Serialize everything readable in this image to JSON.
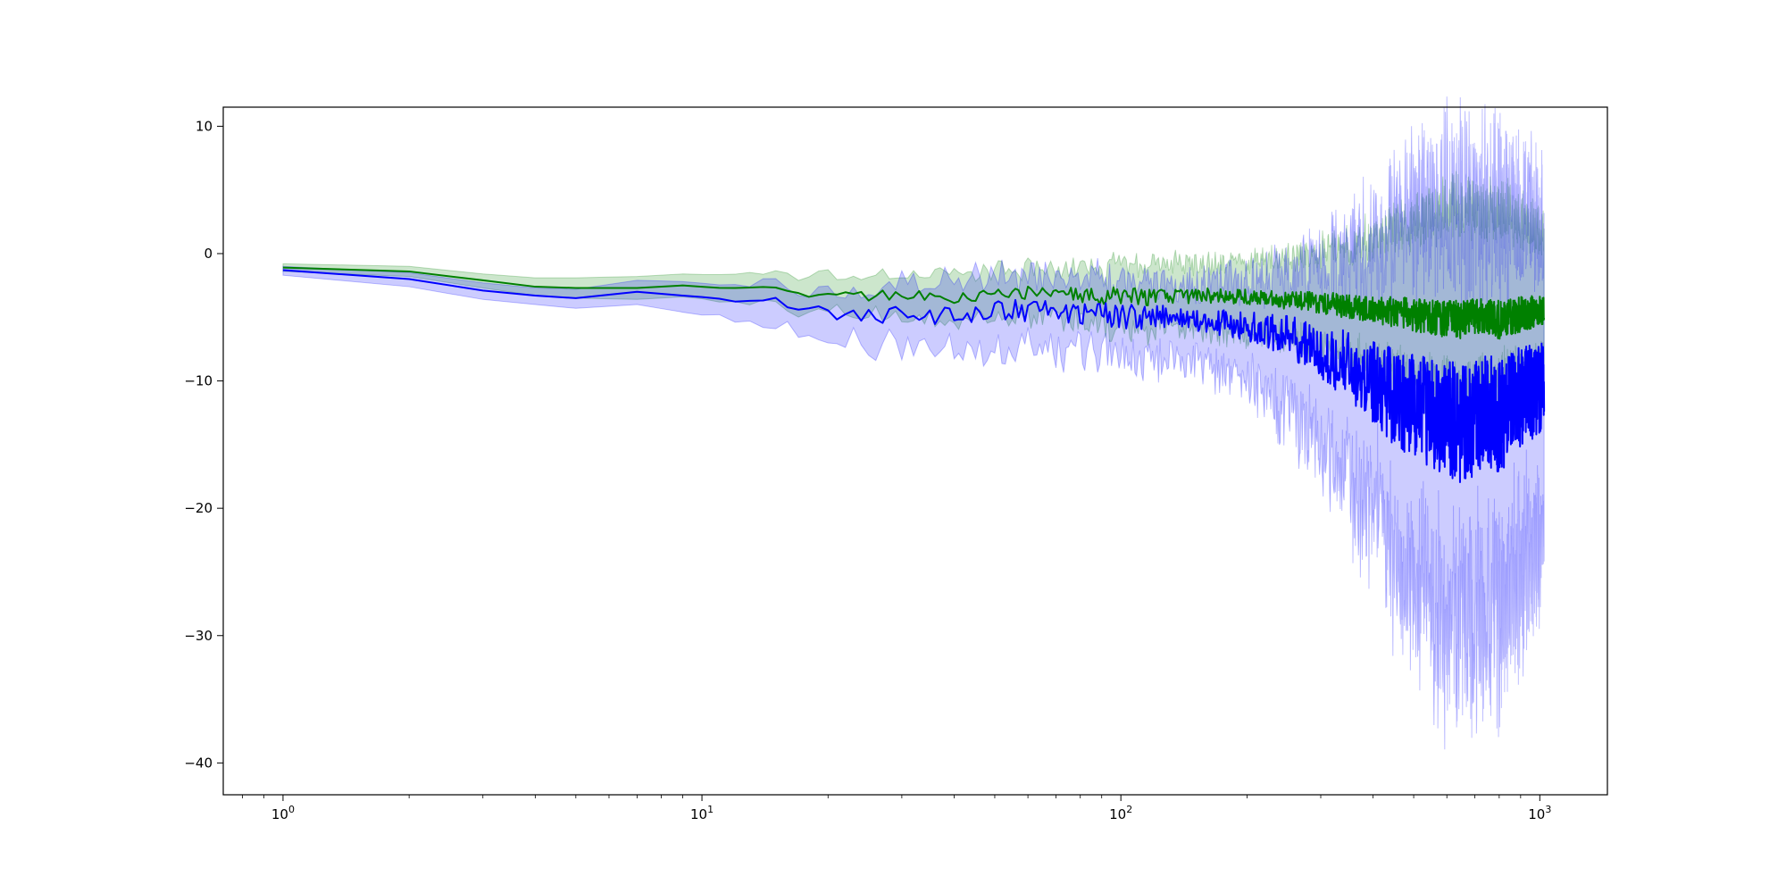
{
  "chart_data": {
    "type": "line",
    "title": "",
    "xlabel": "",
    "ylabel": "",
    "xscale": "log",
    "xlim": [
      0.72,
      1450
    ],
    "ylim": [
      -42.5,
      11.5
    ],
    "grid": false,
    "legend": "none",
    "x_ticks": [
      {
        "value": 1,
        "base": "10",
        "exp": "0"
      },
      {
        "value": 10,
        "base": "10",
        "exp": "1"
      },
      {
        "value": 100,
        "base": "10",
        "exp": "2"
      },
      {
        "value": 1000,
        "base": "10",
        "exp": "3"
      }
    ],
    "y_ticks": [
      {
        "value": 10,
        "label": "10"
      },
      {
        "value": 0,
        "label": "0"
      },
      {
        "value": -10,
        "label": "−10"
      },
      {
        "value": -20,
        "label": "−20"
      },
      {
        "value": -30,
        "label": "−30"
      },
      {
        "value": -40,
        "label": "−40"
      }
    ],
    "series": [
      {
        "color": "#008000",
        "band_color": "#008000",
        "x": [
          1,
          2,
          3,
          4,
          5,
          7,
          9,
          12,
          15,
          17,
          20,
          25,
          30,
          40,
          50,
          60,
          70,
          80,
          90,
          100,
          120,
          150,
          200,
          250,
          300,
          350,
          400,
          450,
          500,
          550,
          600,
          650,
          700,
          750,
          800,
          850,
          900,
          950,
          1000,
          1024
        ],
        "values": [
          -1.1,
          -1.4,
          -2.1,
          -2.6,
          -2.7,
          -2.7,
          -2.5,
          -2.7,
          -2.8,
          -3.3,
          -2.9,
          -3.3,
          -3.3,
          -3.4,
          -3.2,
          -3.1,
          -3.4,
          -3.3,
          -3.3,
          -3.3,
          -3.4,
          -3.3,
          -3.4,
          -3.7,
          -3.9,
          -4.1,
          -4.3,
          -4.6,
          -4.8,
          -5.0,
          -5.1,
          -5.2,
          -5.0,
          -4.9,
          -5.2,
          -5.0,
          -4.8,
          -4.6,
          -4.5,
          -4.3
        ],
        "lower": [
          -1.4,
          -1.8,
          -2.7,
          -3.3,
          -3.5,
          -3.6,
          -3.4,
          -3.8,
          -3.9,
          -4.5,
          -4.2,
          -4.6,
          -4.8,
          -5.0,
          -5.0,
          -5.0,
          -5.3,
          -5.3,
          -5.4,
          -5.5,
          -5.7,
          -5.8,
          -6.0,
          -6.6,
          -7.1,
          -7.7,
          -8.4,
          -9.0,
          -9.6,
          -10.0,
          -10.3,
          -10.4,
          -10.2,
          -10.0,
          -10.3,
          -9.8,
          -9.4,
          -9.0,
          -8.6,
          -8.2
        ],
        "upper": [
          -0.8,
          -1.0,
          -1.6,
          -1.9,
          -1.9,
          -1.8,
          -1.6,
          -1.6,
          -1.7,
          -2.0,
          -1.6,
          -1.9,
          -1.7,
          -1.8,
          -1.5,
          -1.3,
          -1.5,
          -1.4,
          -1.3,
          -1.2,
          -1.2,
          -1.0,
          -0.8,
          -0.6,
          -0.2,
          0.3,
          0.9,
          1.6,
          2.2,
          2.8,
          3.2,
          3.3,
          3.0,
          2.8,
          3.0,
          2.6,
          2.2,
          1.8,
          1.4,
          1.0
        ],
        "noise_amp": [
          0,
          0,
          0,
          0,
          0,
          0,
          0,
          0.1,
          0.2,
          0.3,
          0.3,
          0.4,
          0.4,
          0.5,
          0.5,
          0.6,
          0.6,
          0.7,
          0.7,
          0.7,
          0.7,
          0.6,
          0.6,
          0.7,
          0.9,
          1.0,
          1.1,
          1.2,
          1.3,
          1.4,
          1.5,
          1.5,
          1.5,
          1.5,
          1.5,
          1.5,
          1.4,
          1.3,
          1.2,
          1.2
        ]
      },
      {
        "color": "#0000ff",
        "band_color": "#0000ff",
        "x": [
          1,
          2,
          3,
          4,
          5,
          7,
          9,
          12,
          15,
          17,
          20,
          25,
          30,
          40,
          50,
          60,
          70,
          80,
          90,
          100,
          120,
          150,
          200,
          250,
          300,
          350,
          400,
          450,
          500,
          550,
          600,
          650,
          700,
          750,
          800,
          850,
          900,
          950,
          1000,
          1024
        ],
        "values": [
          -1.3,
          -2.0,
          -2.9,
          -3.3,
          -3.5,
          -3.0,
          -3.3,
          -3.7,
          -3.8,
          -4.3,
          -4.6,
          -4.8,
          -4.7,
          -4.9,
          -4.4,
          -4.6,
          -4.7,
          -4.6,
          -4.7,
          -4.9,
          -5.0,
          -5.1,
          -5.7,
          -6.5,
          -7.6,
          -8.8,
          -10.0,
          -11.3,
          -12.0,
          -12.6,
          -12.9,
          -13.2,
          -12.8,
          -12.2,
          -12.6,
          -12.0,
          -11.4,
          -11.0,
          -10.6,
          -10.2
        ],
        "lower": [
          -1.7,
          -2.6,
          -3.6,
          -4.0,
          -4.3,
          -4.0,
          -4.6,
          -5.0,
          -5.6,
          -5.7,
          -6.3,
          -6.9,
          -7.1,
          -7.7,
          -7.1,
          -7.2,
          -7.4,
          -7.4,
          -7.6,
          -7.7,
          -7.9,
          -8.0,
          -9.5,
          -11.5,
          -14.0,
          -16.5,
          -19.0,
          -22.0,
          -24.5,
          -26.0,
          -27.0,
          -27.5,
          -27.0,
          -26.0,
          -26.5,
          -25.0,
          -23.5,
          -22.5,
          -21.5,
          -20.5
        ],
        "upper": [
          -1.0,
          -1.5,
          -2.3,
          -2.7,
          -2.8,
          -2.1,
          -2.2,
          -2.6,
          -2.4,
          -3.0,
          -3.1,
          -3.0,
          -2.6,
          -2.6,
          -2.0,
          -2.2,
          -2.4,
          -2.4,
          -2.4,
          -2.5,
          -2.5,
          -2.6,
          -2.4,
          -2.0,
          -1.4,
          -0.8,
          -0.2,
          0.8,
          1.6,
          2.2,
          2.6,
          2.8,
          2.6,
          2.4,
          2.7,
          2.3,
          1.9,
          1.4,
          1.0,
          0.6
        ],
        "noise_amp": [
          0,
          0,
          0,
          0,
          0,
          0,
          0,
          0.2,
          0.4,
          0.5,
          0.6,
          0.7,
          0.7,
          0.8,
          0.9,
          0.9,
          1.0,
          1.0,
          1.0,
          1.0,
          1.0,
          1.0,
          1.2,
          1.6,
          2.2,
          2.8,
          3.3,
          3.8,
          4.2,
          4.5,
          4.7,
          4.8,
          4.7,
          4.5,
          4.6,
          4.4,
          4.1,
          3.8,
          3.5,
          3.2
        ]
      }
    ]
  }
}
